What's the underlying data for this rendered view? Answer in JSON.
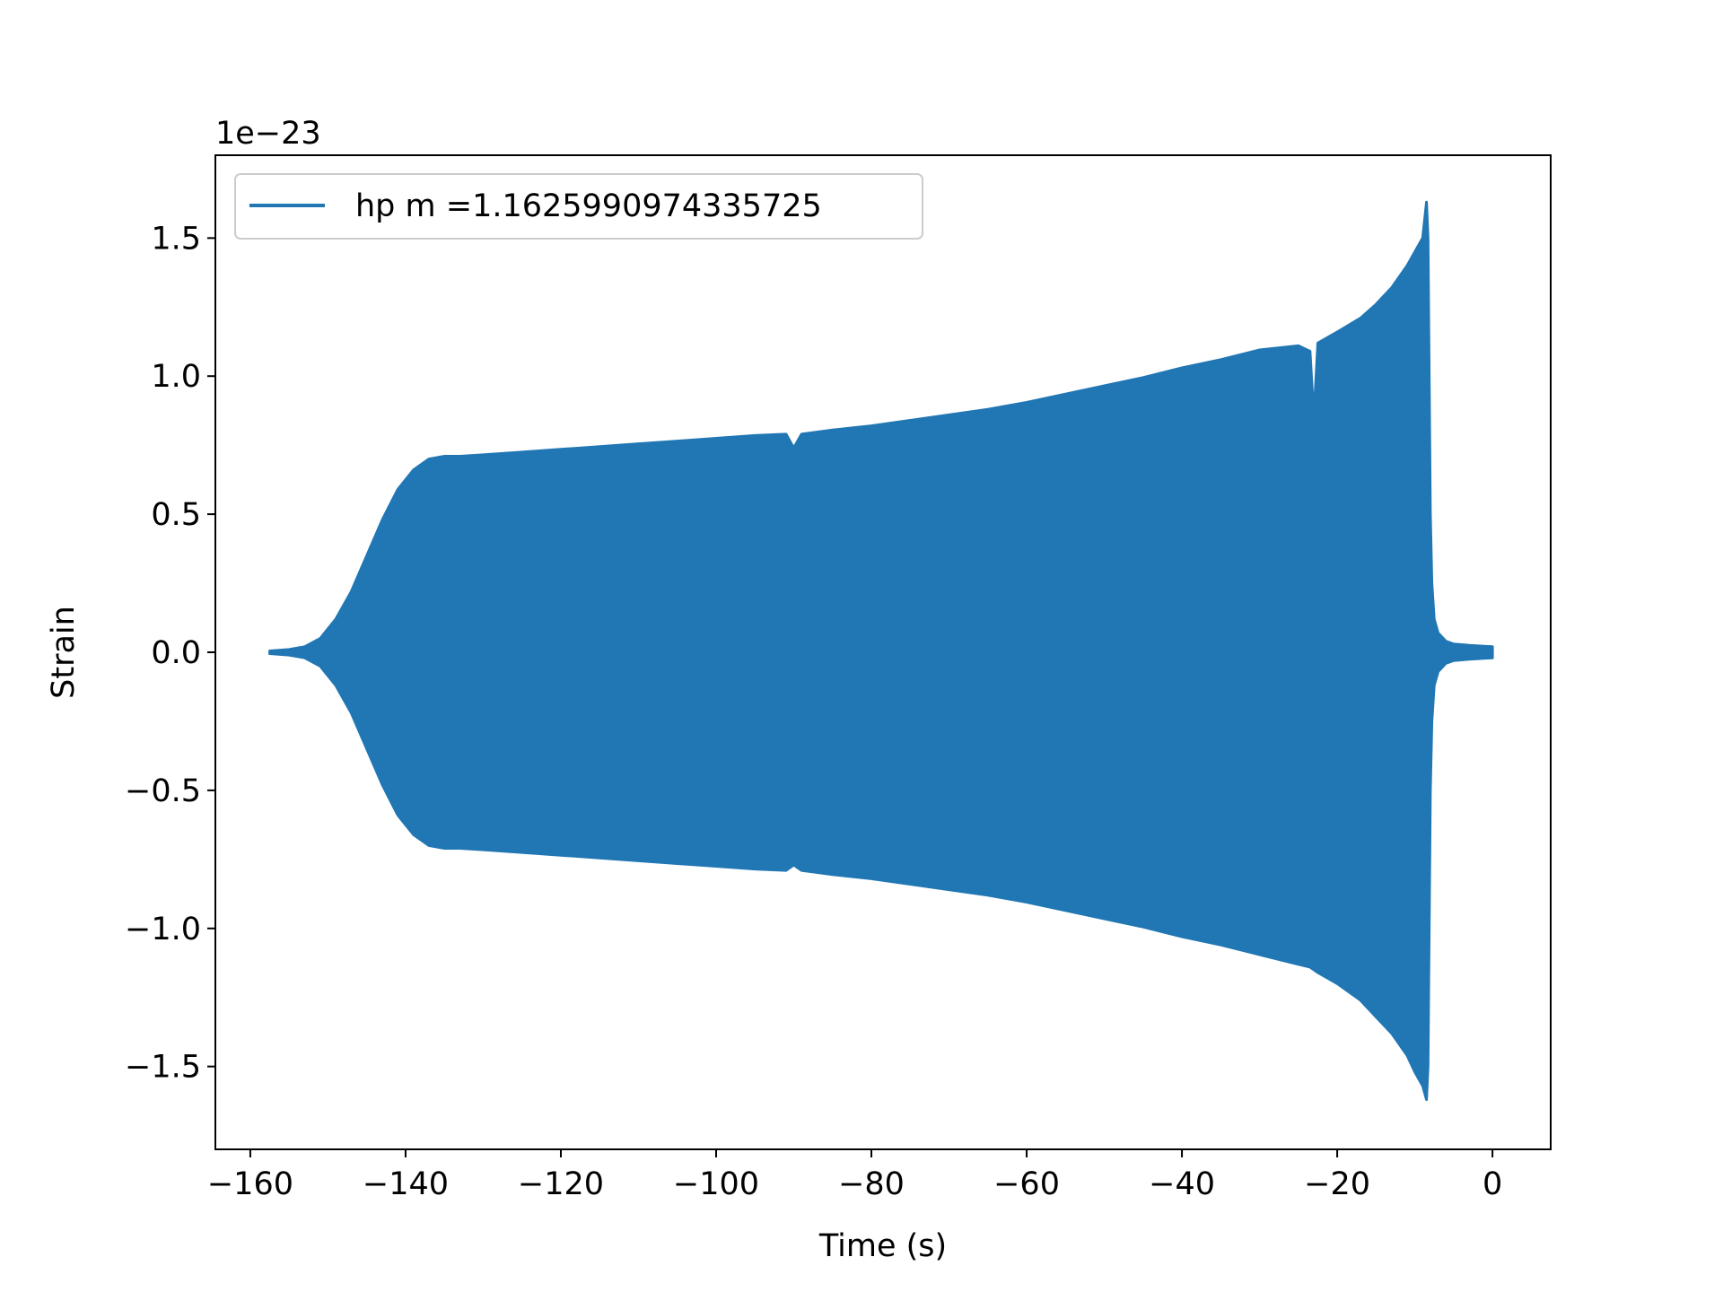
{
  "chart_data": {
    "type": "area",
    "title": "",
    "xlabel": "Time (s)",
    "ylabel": "Strain",
    "y_offset_label": "1e−23",
    "xlim": [
      -164.5,
      7.5
    ],
    "ylim": [
      -1.8,
      1.8
    ],
    "x_ticks": [
      -160,
      -140,
      -120,
      -100,
      -80,
      -60,
      -40,
      -20,
      0
    ],
    "x_tick_labels": [
      "−160",
      "−140",
      "−120",
      "−100",
      "−80",
      "−60",
      "−40",
      "−20",
      "0"
    ],
    "y_ticks": [
      -1.5,
      -1.0,
      -0.5,
      0.0,
      0.5,
      1.0,
      1.5
    ],
    "y_tick_labels": [
      "−1.5",
      "−1.0",
      "−0.5",
      "0.0",
      "0.5",
      "1.0",
      "1.5"
    ],
    "grid": false,
    "legend_position": "top-left",
    "series": [
      {
        "name": "hp m =1.1625990974335725",
        "color": "#2077b4",
        "envelope_x": [
          -157.5,
          -155,
          -153,
          -151,
          -149,
          -147,
          -145,
          -143,
          -141,
          -139,
          -137,
          -135,
          -133,
          -130,
          -125,
          -120,
          -115,
          -110,
          -105,
          -100,
          -95,
          -91,
          -90,
          -89,
          -85,
          -80,
          -75,
          -70,
          -65,
          -60,
          -55,
          -50,
          -45,
          -40,
          -35,
          -30,
          -25,
          -23.5,
          -23,
          -22.5,
          -20,
          -17,
          -15,
          -13,
          -11,
          -10,
          -9,
          -8.5,
          -8.3,
          -8.0,
          -7.8,
          -7.5,
          -7.0,
          -6.0,
          -5.0,
          -3.0,
          0.0
        ],
        "envelope_upper": [
          0.005,
          0.01,
          0.02,
          0.05,
          0.12,
          0.22,
          0.35,
          0.48,
          0.59,
          0.66,
          0.7,
          0.71,
          0.71,
          0.715,
          0.725,
          0.735,
          0.745,
          0.755,
          0.765,
          0.775,
          0.785,
          0.79,
          0.74,
          0.79,
          0.805,
          0.82,
          0.84,
          0.86,
          0.88,
          0.905,
          0.935,
          0.965,
          0.995,
          1.03,
          1.06,
          1.095,
          1.11,
          1.09,
          0.85,
          1.12,
          1.16,
          1.21,
          1.26,
          1.32,
          1.4,
          1.45,
          1.5,
          1.63,
          1.5,
          0.5,
          0.25,
          0.12,
          0.07,
          0.04,
          0.03,
          0.025,
          0.02
        ],
        "envelope_lower": [
          -0.005,
          -0.01,
          -0.02,
          -0.05,
          -0.12,
          -0.22,
          -0.35,
          -0.48,
          -0.59,
          -0.66,
          -0.7,
          -0.71,
          -0.71,
          -0.715,
          -0.725,
          -0.735,
          -0.745,
          -0.755,
          -0.765,
          -0.775,
          -0.785,
          -0.79,
          -0.77,
          -0.79,
          -0.805,
          -0.82,
          -0.84,
          -0.86,
          -0.88,
          -0.905,
          -0.935,
          -0.965,
          -0.995,
          -1.03,
          -1.06,
          -1.095,
          -1.13,
          -1.14,
          -1.15,
          -1.16,
          -1.2,
          -1.26,
          -1.32,
          -1.38,
          -1.46,
          -1.52,
          -1.57,
          -1.62,
          -1.5,
          -0.5,
          -0.25,
          -0.12,
          -0.07,
          -0.04,
          -0.03,
          -0.025,
          -0.02
        ]
      }
    ]
  }
}
